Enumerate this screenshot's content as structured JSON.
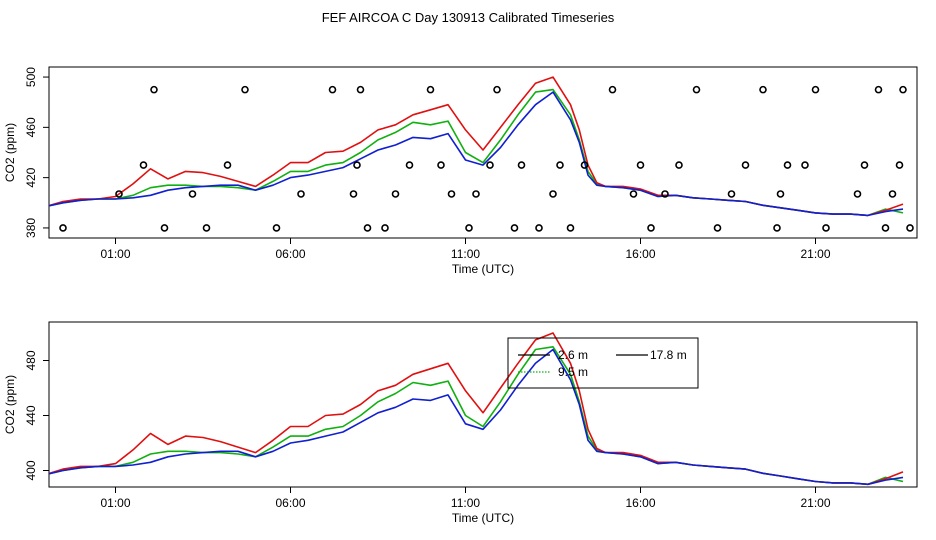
{
  "page_title": "FEF AIRCOA C  Day 130913  Calibrated Timeseries",
  "chart_data": [
    {
      "type": "line",
      "panel": "top",
      "xlabel": "Time (UTC)",
      "ylabel": "CO2 (ppm)",
      "xticks": [
        1,
        6,
        11,
        16,
        21
      ],
      "xtick_labels": [
        "01:00",
        "06:00",
        "11:00",
        "16:00",
        "21:00"
      ],
      "yticks": [
        380,
        420,
        460,
        500
      ],
      "x_range": [
        -0.9,
        23.9
      ],
      "y_range": [
        372,
        508
      ],
      "x": [
        -1,
        -0.5,
        0,
        0.5,
        1,
        1.5,
        2,
        2.5,
        3,
        3.5,
        4,
        4.5,
        5,
        5.5,
        6,
        6.5,
        7,
        7.5,
        8,
        8.5,
        9,
        9.5,
        10,
        10.5,
        11,
        11.5,
        12,
        12.5,
        13,
        13.5,
        14,
        14.25,
        14.5,
        14.75,
        15,
        15.5,
        16,
        16.5,
        17,
        17.5,
        18,
        18.5,
        19,
        19.5,
        20,
        20.5,
        21,
        21.5,
        22,
        22.5,
        23,
        23.5
      ],
      "series": [
        {
          "name": "2.6 m",
          "color": "#e01010",
          "values": [
            397,
            401,
            403,
            403,
            405,
            415,
            427,
            419,
            425,
            424,
            421,
            417,
            413,
            422,
            432,
            432,
            440,
            441,
            448,
            458,
            462,
            470,
            474,
            478,
            458,
            442,
            460,
            478,
            495,
            500,
            478,
            458,
            430,
            416,
            413,
            413,
            411,
            406,
            406,
            404,
            403,
            402,
            401,
            398,
            396,
            394,
            392,
            391,
            391,
            390,
            394,
            399
          ]
        },
        {
          "name": "9.5 m",
          "color": "#10b010",
          "values": [
            397,
            400,
            402,
            403,
            403,
            406,
            412,
            414,
            414,
            413,
            413,
            412,
            410,
            417,
            425,
            425,
            430,
            432,
            440,
            450,
            456,
            464,
            462,
            465,
            440,
            432,
            450,
            470,
            488,
            490,
            470,
            450,
            425,
            415,
            413,
            412,
            410,
            405,
            406,
            404,
            403,
            402,
            401,
            398,
            396,
            394,
            392,
            391,
            391,
            390,
            395,
            392
          ]
        },
        {
          "name": "17.8 m",
          "color": "#1020d0",
          "values": [
            397,
            400,
            402,
            403,
            403,
            404,
            406,
            410,
            412,
            413,
            414,
            414,
            410,
            414,
            420,
            422,
            425,
            428,
            435,
            442,
            446,
            452,
            451,
            455,
            434,
            430,
            444,
            462,
            478,
            488,
            466,
            448,
            422,
            414,
            413,
            412,
            410,
            405,
            406,
            404,
            403,
            402,
            401,
            398,
            396,
            394,
            392,
            391,
            391,
            390,
            393,
            395
          ]
        }
      ],
      "markers": {
        "symbol": "o",
        "x": [
          -0.5,
          1.1,
          1.8,
          2.1,
          2.4,
          3.2,
          3.6,
          4.2,
          4.7,
          5.6,
          6.3,
          7.2,
          7.8,
          7.9,
          8.0,
          8.2,
          8.7,
          9.0,
          9.4,
          10.0,
          10.3,
          10.6,
          11.1,
          11.3,
          11.7,
          11.9,
          12.4,
          12.6,
          13.1,
          13.5,
          13.7,
          14.0,
          14.4,
          15.2,
          15.8,
          16.0,
          16.3,
          16.7,
          17.1,
          17.6,
          18.2,
          18.6,
          19.0,
          19.5,
          19.9,
          20.0,
          20.2,
          20.7,
          21.0,
          21.3,
          22.2,
          22.4,
          22.8,
          23.0,
          23.2,
          23.4,
          23.5,
          23.7
        ],
        "y": [
          380,
          407,
          430,
          490,
          380,
          407,
          380,
          430,
          490,
          380,
          407,
          490,
          407,
          430,
          490,
          380,
          380,
          407,
          430,
          490,
          430,
          407,
          380,
          407,
          430,
          490,
          380,
          430,
          380,
          407,
          430,
          380,
          430,
          490,
          407,
          430,
          380,
          407,
          430,
          490,
          380,
          407,
          430,
          490,
          380,
          407,
          430,
          430,
          490,
          380,
          407,
          430,
          490,
          380,
          407,
          430,
          490,
          380
        ]
      }
    },
    {
      "type": "line",
      "panel": "bottom",
      "xlabel": "Time (UTC)",
      "ylabel": "CO2 (ppm)",
      "xticks": [
        1,
        6,
        11,
        16,
        21
      ],
      "xtick_labels": [
        "01:00",
        "06:00",
        "11:00",
        "16:00",
        "21:00"
      ],
      "yticks": [
        400,
        440,
        480
      ],
      "x_range": [
        -0.9,
        23.9
      ],
      "y_range": [
        388,
        508
      ],
      "x": [
        -1,
        -0.5,
        0,
        0.5,
        1,
        1.5,
        2,
        2.5,
        3,
        3.5,
        4,
        4.5,
        5,
        5.5,
        6,
        6.5,
        7,
        7.5,
        8,
        8.5,
        9,
        9.5,
        10,
        10.5,
        11,
        11.5,
        12,
        12.5,
        13,
        13.5,
        14,
        14.25,
        14.5,
        14.75,
        15,
        15.5,
        16,
        16.5,
        17,
        17.5,
        18,
        18.5,
        19,
        19.5,
        20,
        20.5,
        21,
        21.5,
        22,
        22.5,
        23,
        23.5
      ],
      "series": [
        {
          "name": "2.6 m",
          "color": "#e01010",
          "values": [
            397,
            401,
            403,
            403,
            405,
            415,
            427,
            419,
            425,
            424,
            421,
            417,
            413,
            422,
            432,
            432,
            440,
            441,
            448,
            458,
            462,
            470,
            474,
            478,
            458,
            442,
            460,
            478,
            495,
            500,
            478,
            458,
            430,
            416,
            413,
            413,
            411,
            406,
            406,
            404,
            403,
            402,
            401,
            398,
            396,
            394,
            392,
            391,
            391,
            390,
            394,
            399
          ]
        },
        {
          "name": "9.5 m",
          "color": "#10b010",
          "values": [
            397,
            400,
            402,
            403,
            403,
            406,
            412,
            414,
            414,
            413,
            413,
            412,
            410,
            417,
            425,
            425,
            430,
            432,
            440,
            450,
            456,
            464,
            462,
            465,
            440,
            432,
            450,
            470,
            488,
            490,
            470,
            450,
            425,
            415,
            413,
            412,
            410,
            405,
            406,
            404,
            403,
            402,
            401,
            398,
            396,
            394,
            392,
            391,
            391,
            390,
            395,
            392
          ]
        },
        {
          "name": "17.8 m",
          "color": "#1020d0",
          "values": [
            397,
            400,
            402,
            403,
            403,
            404,
            406,
            410,
            412,
            413,
            414,
            414,
            410,
            414,
            420,
            422,
            425,
            428,
            435,
            442,
            446,
            452,
            451,
            455,
            434,
            430,
            444,
            462,
            478,
            488,
            466,
            448,
            422,
            414,
            413,
            412,
            410,
            405,
            406,
            404,
            403,
            402,
            401,
            398,
            396,
            394,
            392,
            391,
            391,
            390,
            393,
            395
          ]
        }
      ],
      "legend": {
        "position": "top-center",
        "entries": [
          {
            "label": "2.6 m",
            "color": "#e01010",
            "dash": "solid"
          },
          {
            "label": "17.8 m",
            "color": "#1020d0",
            "dash": "solid"
          },
          {
            "label": "9.5 m",
            "color": "#10b010",
            "dash": "dotted"
          }
        ]
      }
    }
  ]
}
